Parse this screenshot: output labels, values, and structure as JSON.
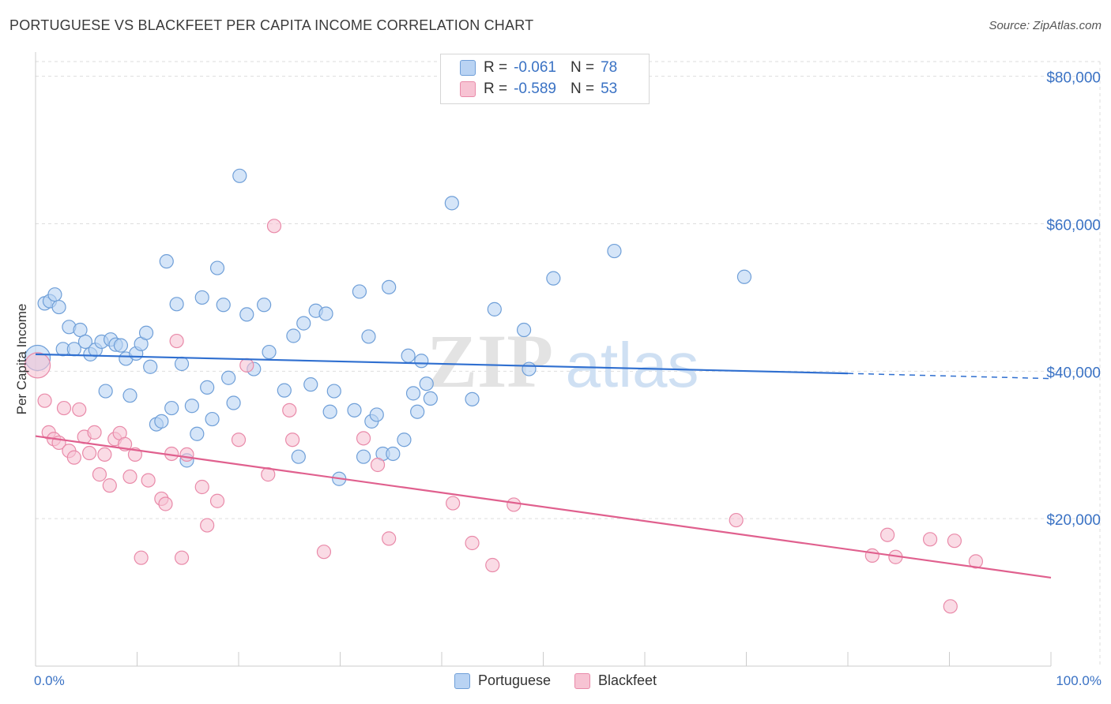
{
  "title": "PORTUGUESE VS BLACKFEET PER CAPITA INCOME CORRELATION CHART",
  "source": "Source: ZipAtlas.com",
  "watermark": {
    "zip": "ZIP",
    "atlas": "atlas"
  },
  "legend_top": [
    {
      "r_label": "R =",
      "r_value": "-0.061",
      "n_label": "N =",
      "n_value": "78"
    },
    {
      "r_label": "R =",
      "r_value": "-0.589",
      "n_label": "N =",
      "n_value": "53"
    }
  ],
  "legend_bottom": [
    "Portuguese",
    "Blackfeet"
  ],
  "colors": {
    "portuguese_fill": "#b9d3f3",
    "portuguese_stroke": "#6f9fd8",
    "portuguese_line": "#2f6fd0",
    "blackfeet_fill": "#f7c3d3",
    "blackfeet_stroke": "#e98aa9",
    "blackfeet_line": "#e0608e",
    "axis_text": "#3a72c4",
    "grid": "#dddddd"
  },
  "chart_data": {
    "type": "scatter",
    "title": "PORTUGUESE VS BLACKFEET PER CAPITA INCOME CORRELATION CHART",
    "xlabel": "",
    "ylabel": "Per Capita Income",
    "xlim": [
      0,
      100
    ],
    "ylim": [
      0,
      82000
    ],
    "x_tick_labels": [
      "0.0%",
      "100.0%"
    ],
    "y_ticks": [
      20000,
      40000,
      60000,
      80000
    ],
    "y_tick_labels": [
      "$20,000",
      "$40,000",
      "$60,000",
      "$80,000"
    ],
    "grid": "horizontal dashed",
    "series": [
      {
        "name": "Portuguese",
        "r": -0.061,
        "n": 78,
        "trend": {
          "x0": 0,
          "y0": 42300,
          "x1": 80,
          "y1": 39700,
          "dashed_to": 100,
          "y_end": 39000
        },
        "points": [
          [
            0.2,
            41800
          ],
          [
            0.9,
            49200
          ],
          [
            1.4,
            49500
          ],
          [
            1.9,
            50400
          ],
          [
            2.3,
            48700
          ],
          [
            2.7,
            43000
          ],
          [
            3.3,
            46000
          ],
          [
            3.8,
            43000
          ],
          [
            4.4,
            45600
          ],
          [
            4.9,
            44000
          ],
          [
            5.4,
            42300
          ],
          [
            5.9,
            42900
          ],
          [
            6.5,
            44000
          ],
          [
            6.9,
            37300
          ],
          [
            7.4,
            44300
          ],
          [
            7.9,
            43600
          ],
          [
            8.4,
            43500
          ],
          [
            8.9,
            41700
          ],
          [
            9.3,
            36700
          ],
          [
            9.9,
            42400
          ],
          [
            10.4,
            43700
          ],
          [
            10.9,
            45200
          ],
          [
            11.3,
            40600
          ],
          [
            11.9,
            32800
          ],
          [
            12.4,
            33200
          ],
          [
            12.9,
            54900
          ],
          [
            13.4,
            35000
          ],
          [
            13.9,
            49100
          ],
          [
            14.4,
            41000
          ],
          [
            14.9,
            27900
          ],
          [
            15.4,
            35300
          ],
          [
            15.9,
            31500
          ],
          [
            16.4,
            50000
          ],
          [
            16.9,
            37800
          ],
          [
            17.4,
            33500
          ],
          [
            17.9,
            54000
          ],
          [
            18.5,
            49000
          ],
          [
            19.0,
            39100
          ],
          [
            19.5,
            35700
          ],
          [
            20.1,
            66500
          ],
          [
            20.8,
            47700
          ],
          [
            21.5,
            40300
          ],
          [
            22.5,
            49000
          ],
          [
            23.0,
            42600
          ],
          [
            24.5,
            37400
          ],
          [
            25.4,
            44800
          ],
          [
            25.9,
            28400
          ],
          [
            26.4,
            46500
          ],
          [
            27.1,
            38200
          ],
          [
            27.6,
            48200
          ],
          [
            28.6,
            47800
          ],
          [
            29.0,
            34500
          ],
          [
            29.4,
            37300
          ],
          [
            29.9,
            25400
          ],
          [
            31.4,
            34700
          ],
          [
            31.9,
            50800
          ],
          [
            32.3,
            28400
          ],
          [
            32.8,
            44700
          ],
          [
            33.1,
            33200
          ],
          [
            33.6,
            34100
          ],
          [
            34.2,
            28800
          ],
          [
            34.8,
            51400
          ],
          [
            35.2,
            28800
          ],
          [
            36.3,
            30700
          ],
          [
            36.7,
            42100
          ],
          [
            37.2,
            37000
          ],
          [
            37.6,
            34500
          ],
          [
            38.0,
            41400
          ],
          [
            38.5,
            38300
          ],
          [
            38.9,
            36300
          ],
          [
            41.0,
            62800
          ],
          [
            43.0,
            36200
          ],
          [
            45.2,
            48400
          ],
          [
            48.1,
            45600
          ],
          [
            48.6,
            40300
          ],
          [
            51.0,
            52600
          ],
          [
            57.0,
            56300
          ],
          [
            69.8,
            52800
          ]
        ]
      },
      {
        "name": "Blackfeet",
        "r": -0.589,
        "n": 53,
        "trend": {
          "x0": 0,
          "y0": 31200,
          "x1": 100,
          "y1": 12000
        },
        "points": [
          [
            0.2,
            40800
          ],
          [
            0.9,
            36000
          ],
          [
            1.3,
            31700
          ],
          [
            1.8,
            30800
          ],
          [
            2.3,
            30300
          ],
          [
            2.8,
            35000
          ],
          [
            3.3,
            29200
          ],
          [
            3.8,
            28300
          ],
          [
            4.3,
            34800
          ],
          [
            4.8,
            31100
          ],
          [
            5.3,
            28900
          ],
          [
            5.8,
            31700
          ],
          [
            6.3,
            26000
          ],
          [
            6.8,
            28700
          ],
          [
            7.3,
            24500
          ],
          [
            7.8,
            30800
          ],
          [
            8.3,
            31600
          ],
          [
            8.8,
            30100
          ],
          [
            9.3,
            25700
          ],
          [
            9.8,
            28700
          ],
          [
            10.4,
            14700
          ],
          [
            11.1,
            25200
          ],
          [
            12.4,
            22700
          ],
          [
            12.8,
            22000
          ],
          [
            13.4,
            28800
          ],
          [
            13.9,
            44100
          ],
          [
            14.4,
            14700
          ],
          [
            14.9,
            28700
          ],
          [
            16.4,
            24300
          ],
          [
            16.9,
            19100
          ],
          [
            17.9,
            22400
          ],
          [
            20.0,
            30700
          ],
          [
            20.8,
            40800
          ],
          [
            22.9,
            26000
          ],
          [
            23.5,
            59700
          ],
          [
            25.0,
            34700
          ],
          [
            25.3,
            30700
          ],
          [
            28.4,
            15500
          ],
          [
            32.3,
            30900
          ],
          [
            33.7,
            27300
          ],
          [
            34.8,
            17300
          ],
          [
            41.1,
            22100
          ],
          [
            43.0,
            16700
          ],
          [
            45.0,
            13700
          ],
          [
            47.1,
            21900
          ],
          [
            69.0,
            19800
          ],
          [
            82.4,
            15000
          ],
          [
            83.9,
            17800
          ],
          [
            84.7,
            14800
          ],
          [
            88.1,
            17200
          ],
          [
            90.1,
            8100
          ],
          [
            90.5,
            17000
          ],
          [
            92.6,
            14200
          ]
        ]
      }
    ]
  }
}
